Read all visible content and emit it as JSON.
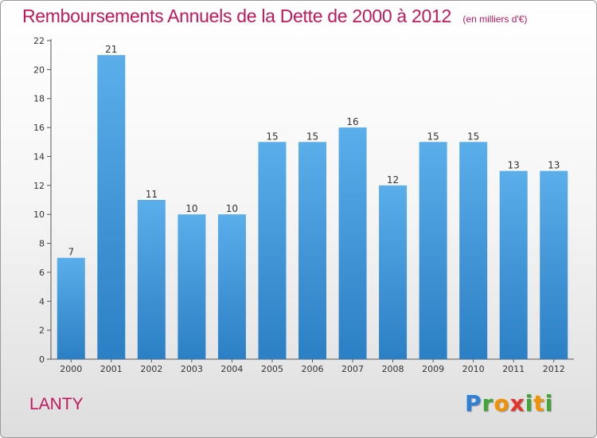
{
  "chart_data": {
    "type": "bar",
    "title": "Remboursements Annuels de la Dette de 2000 à 2012",
    "subtitle": "(en milliers d'€)",
    "xlabel": "",
    "ylabel": "",
    "categories": [
      "2000",
      "2001",
      "2002",
      "2003",
      "2004",
      "2005",
      "2006",
      "2007",
      "2008",
      "2009",
      "2010",
      "2011",
      "2012"
    ],
    "values": [
      7,
      21,
      11,
      10,
      10,
      15,
      15,
      16,
      12,
      15,
      15,
      13,
      13
    ],
    "ylim": [
      0,
      22
    ],
    "yticks": [
      0,
      2,
      4,
      6,
      8,
      10,
      12,
      14,
      16,
      18,
      20,
      22
    ],
    "grid": false,
    "data_labels": true,
    "bar_color_top": "#5aaeea",
    "bar_color_bottom": "#2b7fc4"
  },
  "footer": {
    "place": "LANTY",
    "logo_letters": [
      {
        "ch": "P",
        "color": "#2e7fd6"
      },
      {
        "ch": "r",
        "color": "#3fa535"
      },
      {
        "ch": "o",
        "color": "#f39200"
      },
      {
        "ch": "x",
        "color": "#e5332a"
      },
      {
        "ch": "i",
        "color": "#3fa535"
      },
      {
        "ch": "t",
        "color": "#f39200"
      },
      {
        "ch": "i",
        "color": "#3fa535"
      }
    ],
    "logo_text": "Proxiti"
  },
  "colors": {
    "title": "#c2185b",
    "axis": "#555555"
  }
}
